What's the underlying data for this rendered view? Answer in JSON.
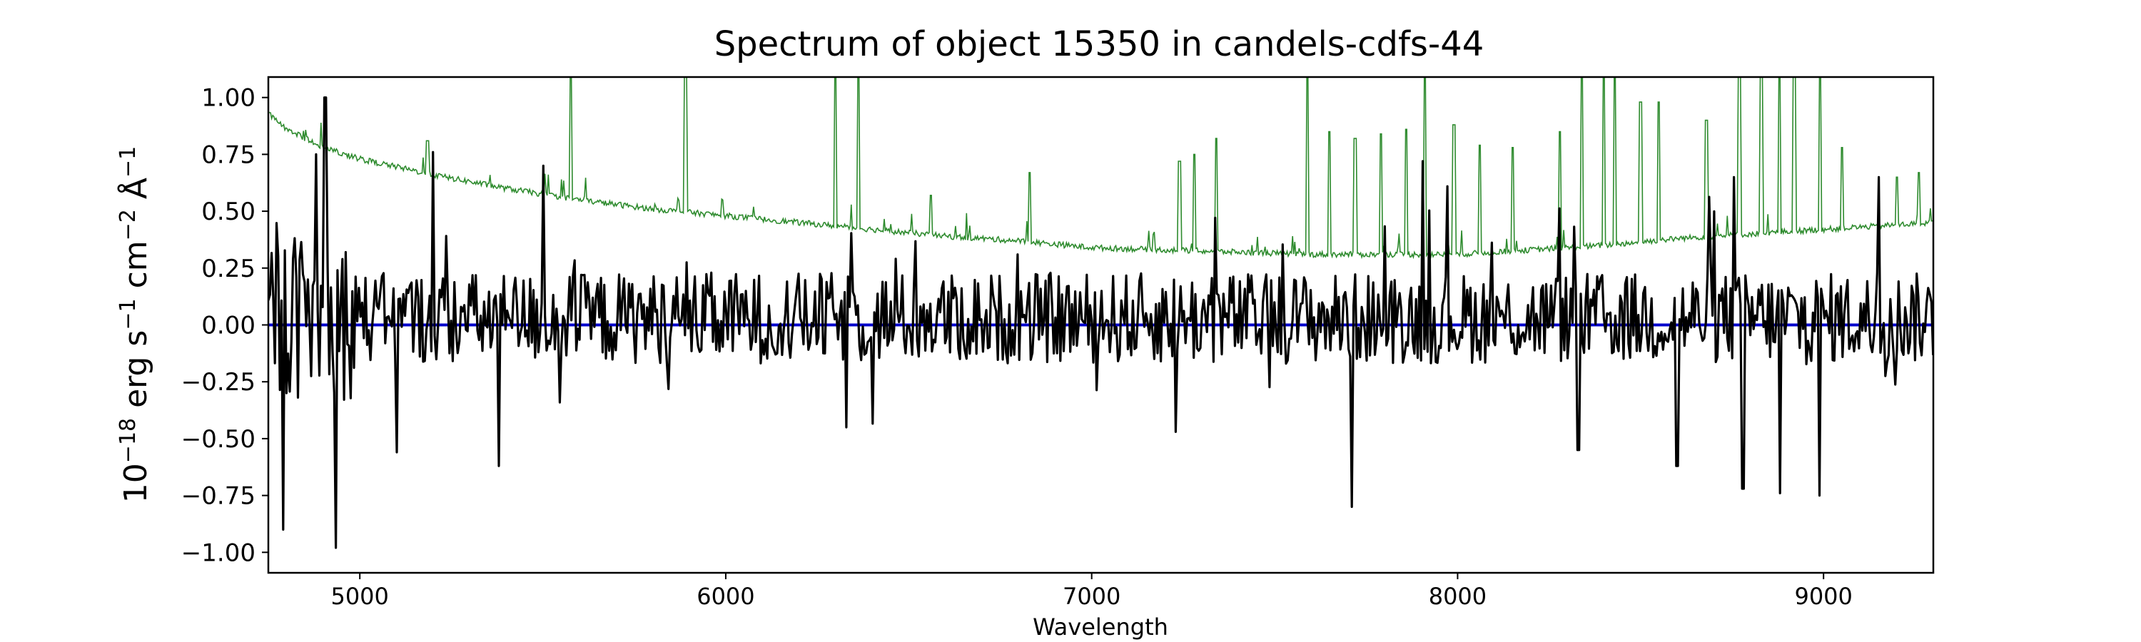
{
  "chart_data": {
    "type": "line",
    "title": "Spectrum of object 15350 in candels-cdfs-44",
    "xlabel": "Wavelength",
    "ylabel_parts": {
      "base": "10",
      "exp": "−18",
      "unit1": " erg s",
      "exp1": "−1",
      "unit2": " cm",
      "exp2": "−2",
      "unit3": " Å",
      "exp3": "−1"
    },
    "xlim": [
      4750,
      9300
    ],
    "ylim": [
      -1.09,
      1.09
    ],
    "xticks": [
      5000,
      6000,
      7000,
      8000,
      9000
    ],
    "yticks": [
      1.0,
      0.75,
      0.5,
      0.25,
      0.0,
      -0.25,
      -0.5,
      -0.75,
      -1.0
    ],
    "ytick_labels": [
      "1.00",
      "0.75",
      "0.50",
      "0.25",
      "0.00",
      "−0.25",
      "−0.50",
      "−0.75",
      "−1.00"
    ],
    "grid": false,
    "series": [
      {
        "role": "error",
        "color": "#2e8b2e",
        "points": [
          [
            4750,
            0.93
          ],
          [
            4800,
            0.86
          ],
          [
            4900,
            0.78
          ],
          [
            5000,
            0.73
          ],
          [
            5200,
            0.66
          ],
          [
            5400,
            0.6
          ],
          [
            5600,
            0.55
          ],
          [
            5800,
            0.51
          ],
          [
            6000,
            0.48
          ],
          [
            6200,
            0.45
          ],
          [
            6400,
            0.42
          ],
          [
            6600,
            0.39
          ],
          [
            6800,
            0.37
          ],
          [
            7000,
            0.34
          ],
          [
            7200,
            0.33
          ],
          [
            7400,
            0.32
          ],
          [
            7600,
            0.31
          ],
          [
            7800,
            0.31
          ],
          [
            8000,
            0.31
          ],
          [
            8200,
            0.33
          ],
          [
            8400,
            0.35
          ],
          [
            8600,
            0.38
          ],
          [
            8800,
            0.4
          ],
          [
            9000,
            0.42
          ],
          [
            9300,
            0.45
          ]
        ],
        "spikes": [
          [
            5185,
            0.81
          ],
          [
            5577,
            1.1
          ],
          [
            5890,
            1.1
          ],
          [
            6300,
            1.1
          ],
          [
            6363,
            1.1
          ],
          [
            6560,
            0.57
          ],
          [
            6830,
            0.67
          ],
          [
            7240,
            0.72
          ],
          [
            7280,
            0.75
          ],
          [
            7340,
            0.82
          ],
          [
            7590,
            1.1
          ],
          [
            7650,
            0.85
          ],
          [
            7720,
            0.82
          ],
          [
            7790,
            0.84
          ],
          [
            7860,
            0.86
          ],
          [
            7910,
            1.1
          ],
          [
            7990,
            0.88
          ],
          [
            8060,
            0.79
          ],
          [
            8150,
            0.78
          ],
          [
            8280,
            0.85
          ],
          [
            8340,
            1.1
          ],
          [
            8400,
            1.1
          ],
          [
            8430,
            1.1
          ],
          [
            8500,
            0.98
          ],
          [
            8550,
            0.98
          ],
          [
            8680,
            0.9
          ],
          [
            8770,
            1.1
          ],
          [
            8830,
            1.1
          ],
          [
            8880,
            1.1
          ],
          [
            8920,
            1.1
          ],
          [
            8990,
            1.1
          ],
          [
            9050,
            0.78
          ],
          [
            9200,
            0.65
          ],
          [
            9260,
            0.67
          ]
        ]
      },
      {
        "role": "flux",
        "color": "#000000",
        "amplitude": 0.2,
        "notable_points": [
          [
            4790,
            -0.9
          ],
          [
            4880,
            0.75
          ],
          [
            4905,
            1.0
          ],
          [
            4935,
            -0.98
          ],
          [
            5100,
            -0.56
          ],
          [
            5200,
            0.76
          ],
          [
            5380,
            -0.62
          ],
          [
            5500,
            0.7
          ],
          [
            6330,
            -0.45
          ],
          [
            7230,
            -0.47
          ],
          [
            7710,
            -0.8
          ],
          [
            7905,
            0.72
          ],
          [
            8330,
            -0.55
          ],
          [
            8600,
            -0.62
          ],
          [
            8755,
            0.65
          ],
          [
            8780,
            -0.72
          ],
          [
            8880,
            -0.74
          ],
          [
            8990,
            -0.75
          ],
          [
            9150,
            0.65
          ]
        ]
      },
      {
        "role": "continuum",
        "color": "#0000cc",
        "value": 0.0
      }
    ]
  }
}
